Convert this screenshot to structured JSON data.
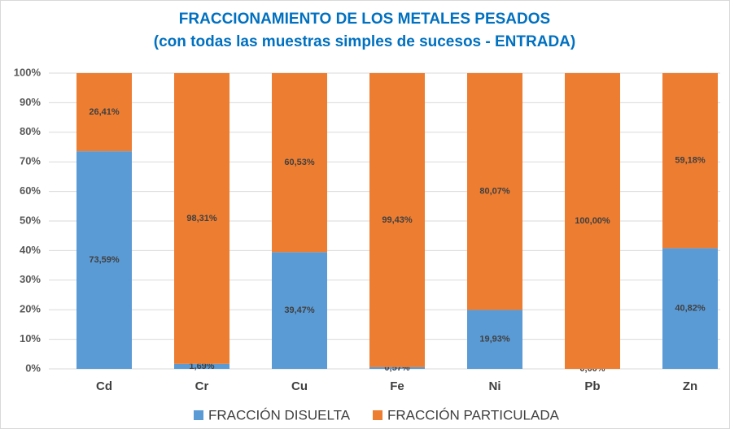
{
  "chart_data": {
    "type": "stacked_bar",
    "title": "FRACCIONAMIENTO DE LOS METALES PESADOS",
    "subtitle": "(con todas las muestras simples de sucesos - ENTRADA)",
    "categories": [
      "Cd",
      "Cr",
      "Cu",
      "Fe",
      "Ni",
      "Pb",
      "Zn"
    ],
    "series": [
      {
        "name": "FRACCIÓN DISUELTA",
        "color": "#5b9bd5",
        "values": [
          73.59,
          1.69,
          39.47,
          0.57,
          19.93,
          0.0,
          40.82
        ],
        "value_labels": [
          "73,59%",
          "1,69%",
          "39,47%",
          "0,57%",
          "19,93%",
          "0,00%",
          "40,82%"
        ]
      },
      {
        "name": "FRACCIÓN PARTICULADA",
        "color": "#ed7d31",
        "values": [
          26.41,
          98.31,
          60.53,
          99.43,
          80.07,
          100.0,
          59.18
        ],
        "value_labels": [
          "26,41%",
          "98,31%",
          "60,53%",
          "99,43%",
          "80,07%",
          "100,00%",
          "59,18%"
        ]
      }
    ],
    "ylim": [
      0,
      100
    ],
    "yticks": [
      {
        "value": 0,
        "label": "0%"
      },
      {
        "value": 10,
        "label": "10%"
      },
      {
        "value": 20,
        "label": "20%"
      },
      {
        "value": 30,
        "label": "30%"
      },
      {
        "value": 40,
        "label": "40%"
      },
      {
        "value": 50,
        "label": "50%"
      },
      {
        "value": 60,
        "label": "60%"
      },
      {
        "value": 70,
        "label": "70%"
      },
      {
        "value": 80,
        "label": "80%"
      },
      {
        "value": 90,
        "label": "90%"
      },
      {
        "value": 100,
        "label": "100%"
      }
    ],
    "grid": true
  }
}
